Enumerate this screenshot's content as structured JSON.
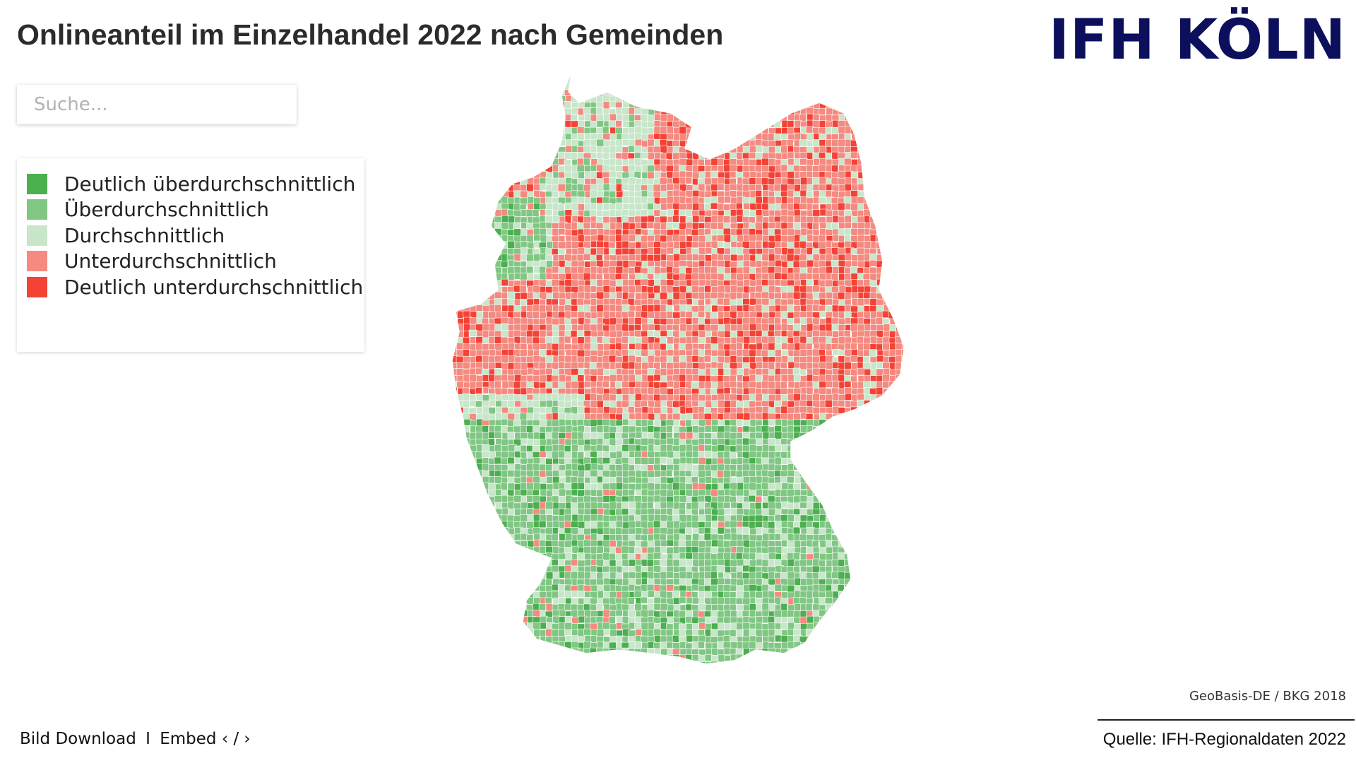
{
  "title": "Onlineanteil im Einzelhandel 2022 nach Gemeinden",
  "logo": {
    "text": "IFH KÖLN",
    "color": "#0c0f5c"
  },
  "search": {
    "placeholder": "Suche..."
  },
  "legend": {
    "items": [
      {
        "label": "Deutlich überdurchschnittlich",
        "color": "#4caf50"
      },
      {
        "label": "Überdurchschnittlich",
        "color": "#81c784"
      },
      {
        "label": "Durchschnittlich",
        "color": "#c8e6c9"
      },
      {
        "label": "Unterdurchschnittlich",
        "color": "#f58a80"
      },
      {
        "label": "Deutlich unterdurchschnittlich",
        "color": "#f44336"
      }
    ]
  },
  "map": {
    "region": "Deutschland",
    "level": "Gemeinden",
    "regions_visible": [
      {
        "area": "north-west",
        "category": "Unterdurchschnittlich"
      },
      {
        "area": "schleswig-holstein",
        "category": "Durchschnittlich"
      },
      {
        "area": "east",
        "category": "Unterdurchschnittlich"
      },
      {
        "area": "north-rhine",
        "category": "Unterdurchschnittlich"
      },
      {
        "area": "south-west",
        "category": "Durchschnittlich"
      },
      {
        "area": "bavaria",
        "category": "Überdurchschnittlich"
      },
      {
        "area": "emsland",
        "category": "Überdurchschnittlich"
      }
    ]
  },
  "attribution": "GeoBasis-DE / BKG 2018",
  "footer": {
    "download": "Bild Download",
    "separator": "I",
    "embed": "Embed ‹ / ›"
  },
  "source": "Quelle: IFH-Regionaldaten 2022"
}
